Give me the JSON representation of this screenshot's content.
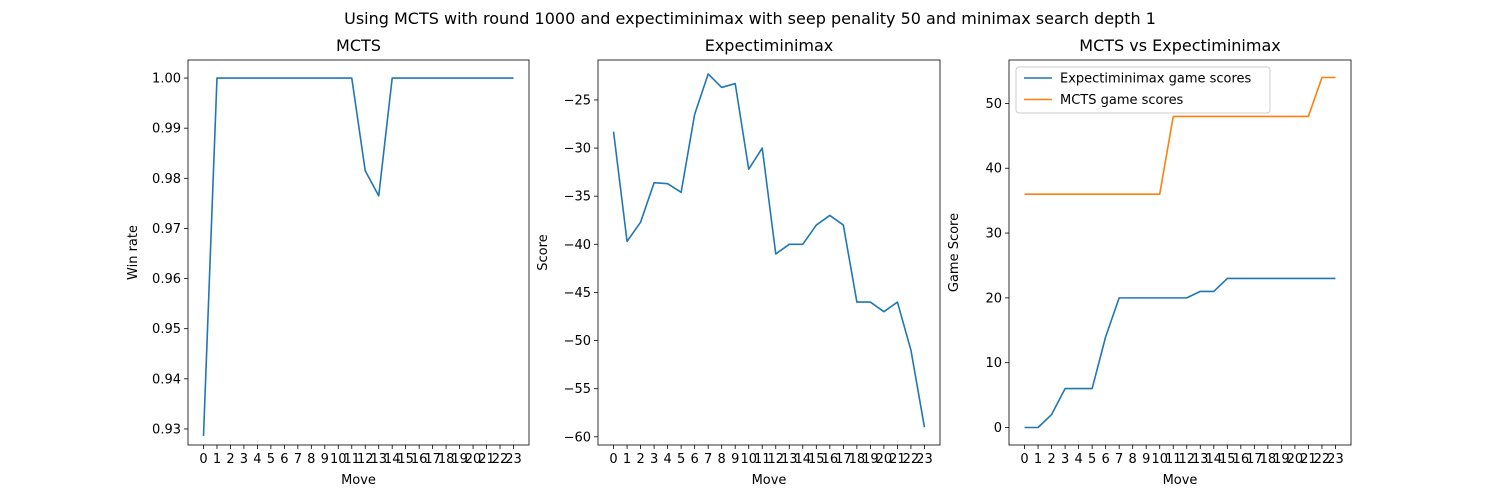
{
  "figure_title": "Using MCTS with round 1000 and expectiminimax with seep penality 50 and minimax search depth 1",
  "chart_data": [
    {
      "type": "line",
      "title": "MCTS",
      "xlabel": "Move",
      "ylabel": "Win rate",
      "x": [
        0,
        1,
        2,
        3,
        4,
        5,
        6,
        7,
        8,
        9,
        10,
        11,
        12,
        13,
        14,
        15,
        16,
        17,
        18,
        19,
        20,
        21,
        22,
        23
      ],
      "xticks": [
        "0",
        "1",
        "2",
        "3",
        "4",
        "5",
        "6",
        "7",
        "8",
        "9",
        "10",
        "11",
        "12",
        "13",
        "14",
        "15",
        "16",
        "17",
        "18",
        "19",
        "20",
        "21",
        "22",
        "23"
      ],
      "ylim": [
        0.9268,
        1.0036
      ],
      "yticks": [
        0.93,
        0.94,
        0.95,
        0.96,
        0.97,
        0.98,
        0.99,
        1.0
      ],
      "ytick_labels": [
        "0.93",
        "0.94",
        "0.95",
        "0.96",
        "0.97",
        "0.98",
        "0.99",
        "1.00"
      ],
      "grid": false,
      "series": [
        {
          "color": "#1f77b4",
          "values": [
            0.9286,
            1.0,
            1.0,
            1.0,
            1.0,
            1.0,
            1.0,
            1.0,
            1.0,
            1.0,
            1.0,
            1.0,
            0.9815,
            0.9765,
            1.0,
            1.0,
            1.0,
            1.0,
            1.0,
            1.0,
            1.0,
            1.0,
            1.0,
            1.0
          ]
        }
      ]
    },
    {
      "type": "line",
      "title": "Expectiminimax",
      "xlabel": "Move",
      "ylabel": "Score",
      "x": [
        0,
        1,
        2,
        3,
        4,
        5,
        6,
        7,
        8,
        9,
        10,
        11,
        12,
        13,
        14,
        15,
        16,
        17,
        18,
        19,
        20,
        21,
        22,
        23
      ],
      "xticks": [
        "0",
        "1",
        "2",
        "3",
        "4",
        "5",
        "6",
        "7",
        "8",
        "9",
        "10",
        "11",
        "12",
        "13",
        "14",
        "15",
        "16",
        "17",
        "18",
        "19",
        "20",
        "21",
        "22",
        "23"
      ],
      "ylim": [
        -60.85,
        -20.85
      ],
      "yticks": [
        -60,
        -55,
        -50,
        -45,
        -40,
        -35,
        -30,
        -25
      ],
      "ytick_labels": [
        "−60",
        "−55",
        "−50",
        "−45",
        "−40",
        "−35",
        "−30",
        "−25"
      ],
      "grid": false,
      "series": [
        {
          "color": "#1f77b4",
          "values": [
            -28.3,
            -39.7,
            -37.7,
            -33.6,
            -33.7,
            -34.6,
            -26.5,
            -22.3,
            -23.7,
            -23.3,
            -32.2,
            -30.0,
            -41.0,
            -40.0,
            -40.0,
            -38.0,
            -37.0,
            -38.0,
            -46.0,
            -46.0,
            -47.0,
            -46.0,
            -51.0,
            -59.0
          ]
        }
      ]
    },
    {
      "type": "line",
      "title": "MCTS vs Expectiminimax",
      "xlabel": "Move",
      "ylabel": "Game Score",
      "x": [
        0,
        1,
        2,
        3,
        4,
        5,
        6,
        7,
        8,
        9,
        10,
        11,
        12,
        13,
        14,
        15,
        16,
        17,
        18,
        19,
        20,
        21,
        22,
        23
      ],
      "xticks": [
        "0",
        "1",
        "2",
        "3",
        "4",
        "5",
        "6",
        "7",
        "8",
        "9",
        "10",
        "11",
        "12",
        "13",
        "14",
        "15",
        "16",
        "17",
        "18",
        "19",
        "20",
        "21",
        "22",
        "23"
      ],
      "ylim": [
        -2.7,
        56.7
      ],
      "yticks": [
        0,
        10,
        20,
        30,
        40,
        50
      ],
      "ytick_labels": [
        "0",
        "10",
        "20",
        "30",
        "40",
        "50"
      ],
      "grid": false,
      "legend_position": "top-left",
      "series": [
        {
          "name": "Expectiminimax game scores",
          "color": "#1f77b4",
          "values": [
            0,
            0,
            2,
            6,
            6,
            6,
            14,
            20,
            20,
            20,
            20,
            20,
            20,
            21,
            21,
            23,
            23,
            23,
            23,
            23,
            23,
            23,
            23,
            23
          ]
        },
        {
          "name": "MCTS game scores",
          "color": "#ff7f0e",
          "values": [
            36,
            36,
            36,
            36,
            36,
            36,
            36,
            36,
            36,
            36,
            36,
            48,
            48,
            48,
            48,
            48,
            48,
            48,
            48,
            48,
            48,
            48,
            54,
            54
          ]
        }
      ]
    }
  ]
}
